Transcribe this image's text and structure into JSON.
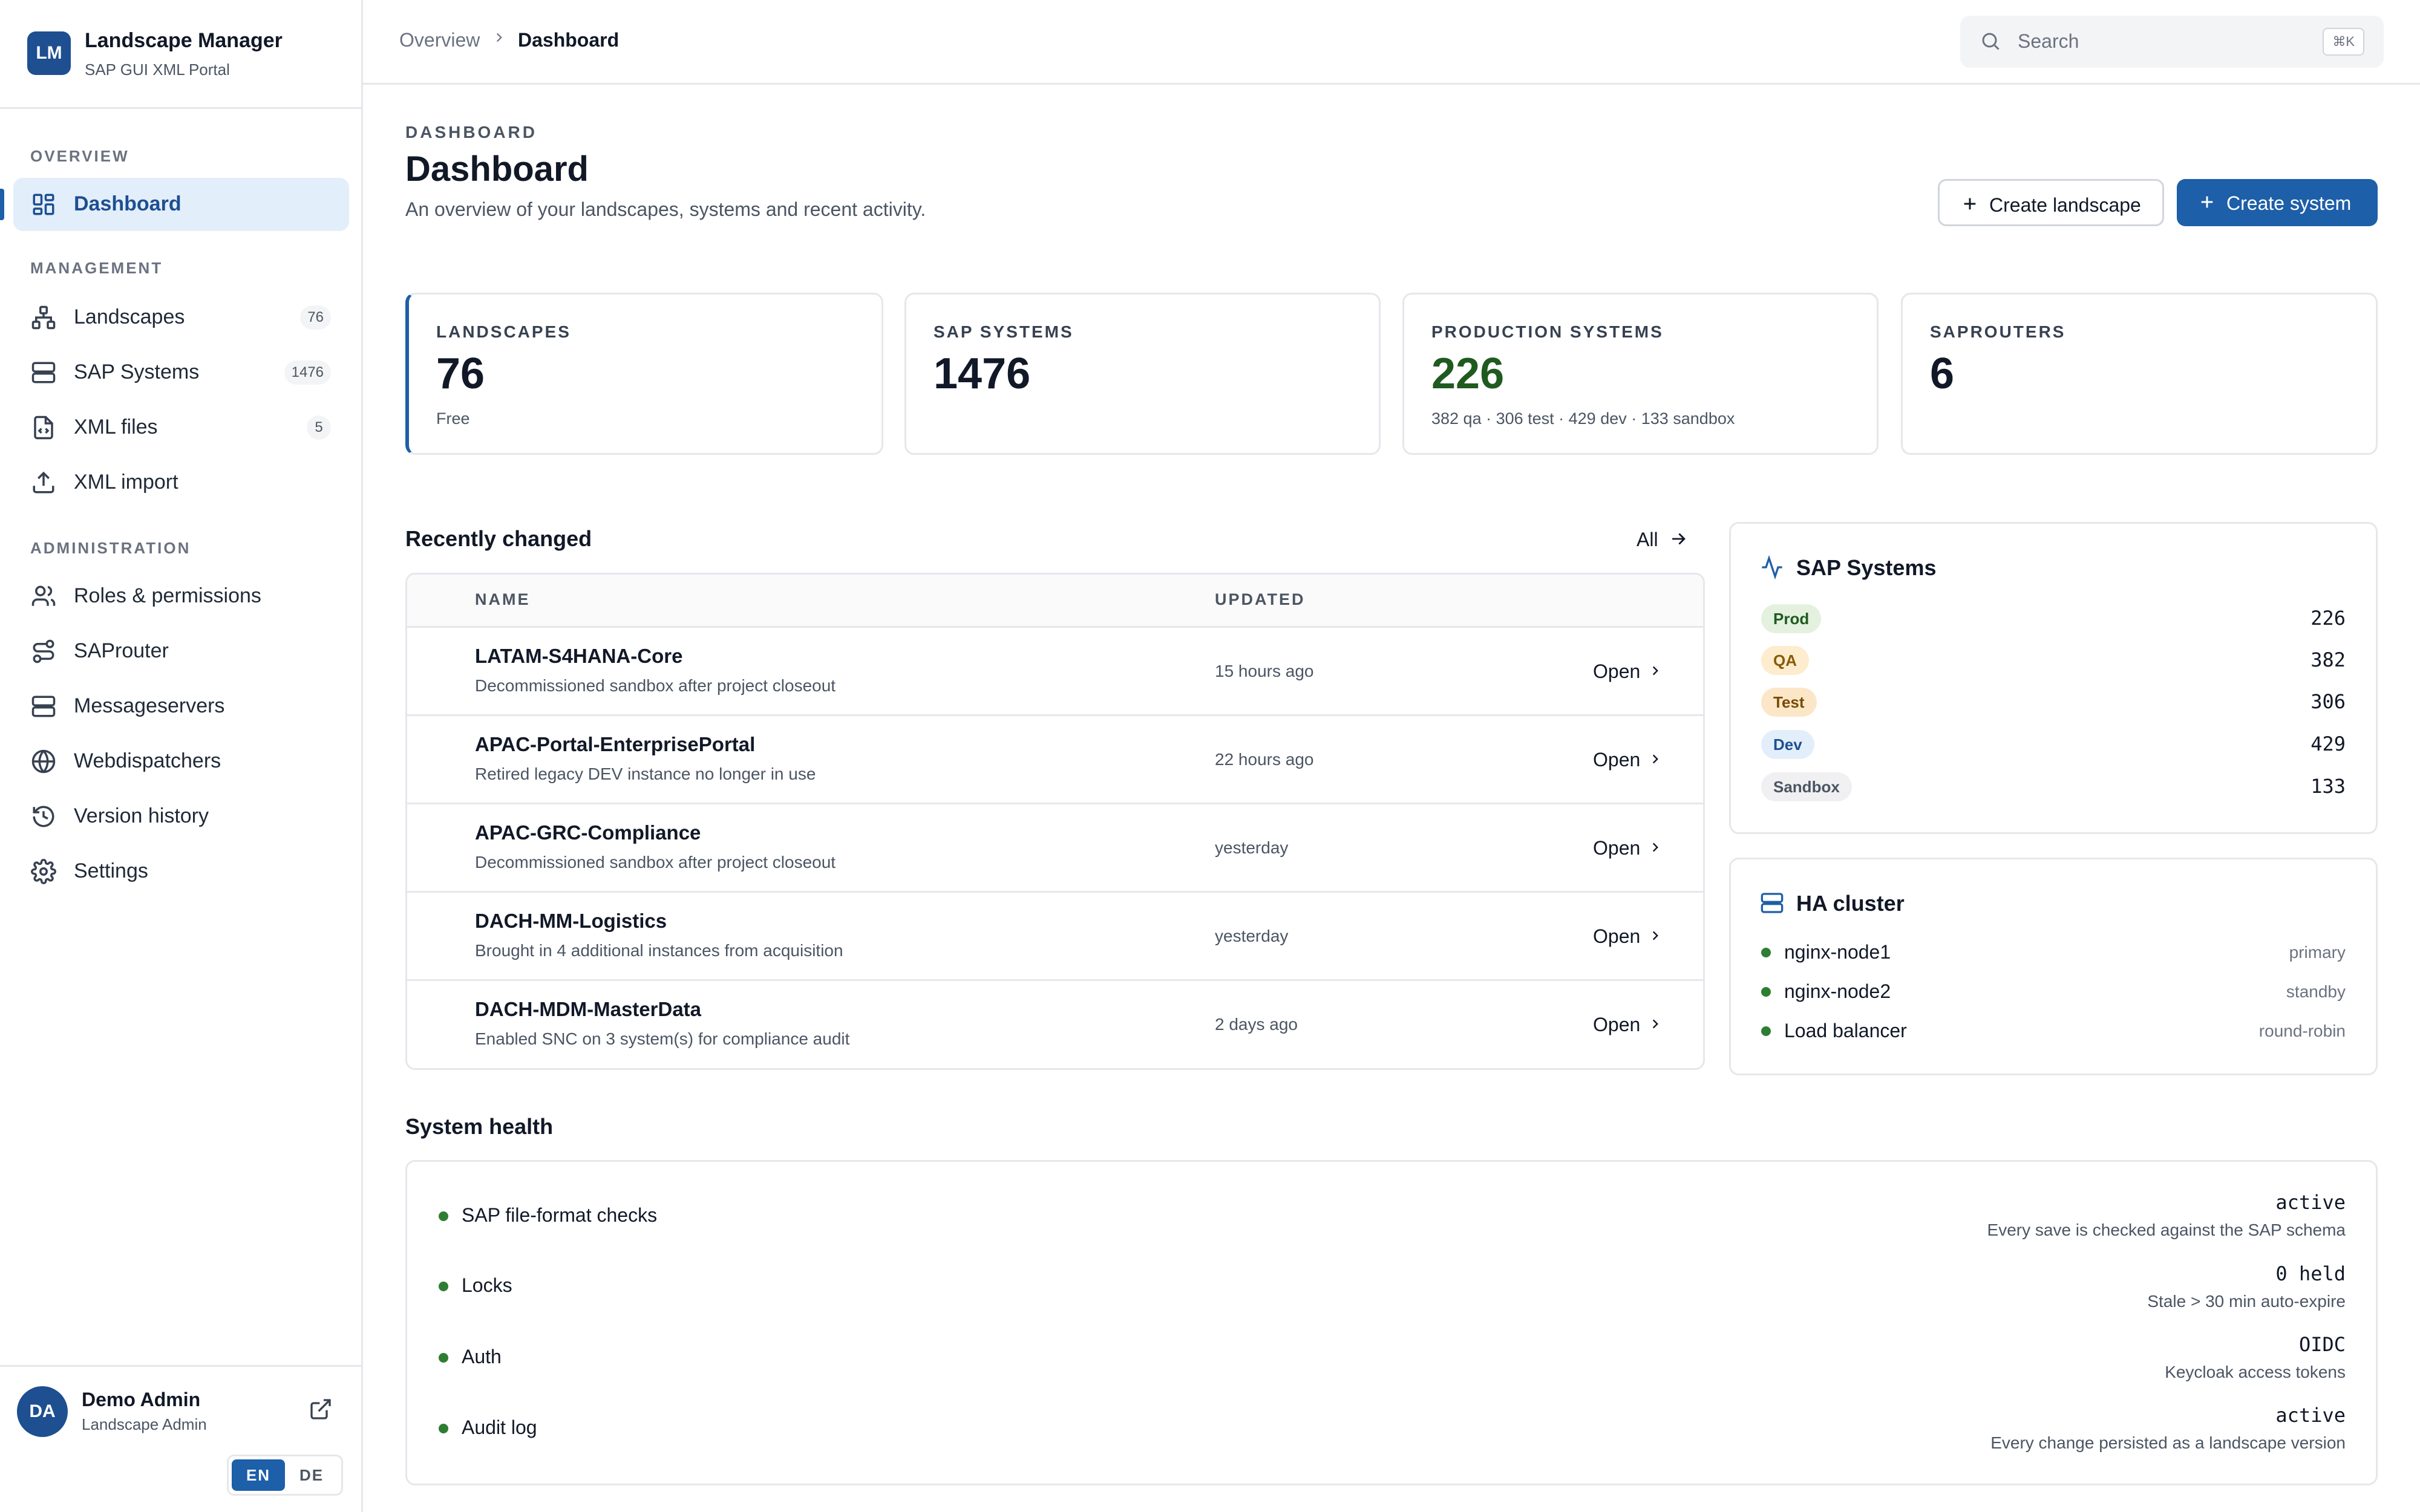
{
  "brand": {
    "logo": "LM",
    "title": "Landscape Manager",
    "subtitle": "SAP GUI XML Portal"
  },
  "sidebar": {
    "sections": {
      "overview": "OVERVIEW",
      "management": "MANAGEMENT",
      "administration": "ADMINISTRATION"
    },
    "items": [
      {
        "label": "Dashboard",
        "icon": "dashboard-icon",
        "active": true
      },
      {
        "label": "Landscapes",
        "icon": "hierarchy-icon",
        "badge": "76"
      },
      {
        "label": "SAP Systems",
        "icon": "server-icon",
        "badge": "1476"
      },
      {
        "label": "XML files",
        "icon": "code-file-icon",
        "badge": "5"
      },
      {
        "label": "XML import",
        "icon": "upload-icon"
      },
      {
        "label": "Roles & permissions",
        "icon": "users-icon"
      },
      {
        "label": "SAProuter",
        "icon": "route-icon"
      },
      {
        "label": "Messageservers",
        "icon": "server-icon"
      },
      {
        "label": "Webdispatchers",
        "icon": "globe-icon"
      },
      {
        "label": "Version history",
        "icon": "history-icon"
      },
      {
        "label": "Settings",
        "icon": "gear-icon"
      }
    ]
  },
  "user": {
    "initials": "DA",
    "name": "Demo Admin",
    "role": "Landscape Admin"
  },
  "language": {
    "options": [
      "EN",
      "DE"
    ],
    "selected": "EN"
  },
  "breadcrumb": {
    "parent": "Overview",
    "current": "Dashboard"
  },
  "search": {
    "placeholder": "Search",
    "shortcut": "⌘K"
  },
  "header": {
    "eyebrow": "DASHBOARD",
    "title": "Dashboard",
    "description": "An overview of your landscapes, systems and recent activity.",
    "create_landscape": "Create landscape",
    "create_system": "Create system"
  },
  "stats": [
    {
      "label": "LANDSCAPES",
      "value": "76",
      "sub": "Free"
    },
    {
      "label": "SAP SYSTEMS",
      "value": "1476",
      "sub": ""
    },
    {
      "label": "PRODUCTION SYSTEMS",
      "value": "226",
      "sub": "382 qa · 306 test · 429 dev · 133 sandbox"
    },
    {
      "label": "SAPROUTERS",
      "value": "6",
      "sub": ""
    }
  ],
  "recent": {
    "title": "Recently changed",
    "all_link": "All",
    "columns": {
      "name": "NAME",
      "updated": "UPDATED"
    },
    "open_label": "Open",
    "rows": [
      {
        "name": "LATAM-S4HANA-Core",
        "desc": "Decommissioned sandbox after project closeout",
        "updated": "15 hours ago"
      },
      {
        "name": "APAC-Portal-EnterprisePortal",
        "desc": "Retired legacy DEV instance no longer in use",
        "updated": "22 hours ago"
      },
      {
        "name": "APAC-GRC-Compliance",
        "desc": "Decommissioned sandbox after project closeout",
        "updated": "yesterday"
      },
      {
        "name": "DACH-MM-Logistics",
        "desc": "Brought in 4 additional instances from acquisition",
        "updated": "yesterday"
      },
      {
        "name": "DACH-MDM-MasterData",
        "desc": "Enabled SNC on 3 system(s) for compliance audit",
        "updated": "2 days ago"
      }
    ]
  },
  "sap_systems": {
    "title": "SAP Systems",
    "envs": [
      {
        "label": "Prod",
        "count": "226",
        "bg": "#e4f1df",
        "fg": "#1f5a1f"
      },
      {
        "label": "QA",
        "count": "382",
        "bg": "#fdeccd",
        "fg": "#8a5a06"
      },
      {
        "label": "Test",
        "count": "306",
        "bg": "#fbe7c7",
        "fg": "#7a4a06"
      },
      {
        "label": "Dev",
        "count": "429",
        "bg": "#e3eefb",
        "fg": "#1d4f91"
      },
      {
        "label": "Sandbox",
        "count": "133",
        "bg": "#f0f0f2",
        "fg": "#4b5563"
      }
    ]
  },
  "ha_cluster": {
    "title": "HA cluster",
    "nodes": [
      {
        "name": "nginx-node1",
        "role": "primary"
      },
      {
        "name": "nginx-node2",
        "role": "standby"
      },
      {
        "name": "Load balancer",
        "role": "round-robin"
      }
    ]
  },
  "health": {
    "title": "System health",
    "items": [
      {
        "name": "SAP file-format checks",
        "value": "active",
        "note": "Every save is checked against the SAP schema"
      },
      {
        "name": "Locks",
        "value": "0 held",
        "note": "Stale > 30 min auto-expire"
      },
      {
        "name": "Auth",
        "value": "OIDC",
        "note": "Keycloak access tokens"
      },
      {
        "name": "Audit log",
        "value": "active",
        "note": "Every change persisted as a landscape version"
      }
    ]
  },
  "colors": {
    "accent": "#1d5fa8",
    "brand": "#1d4f91",
    "ok": "#2f7d32",
    "production": "#1f5a1f"
  }
}
